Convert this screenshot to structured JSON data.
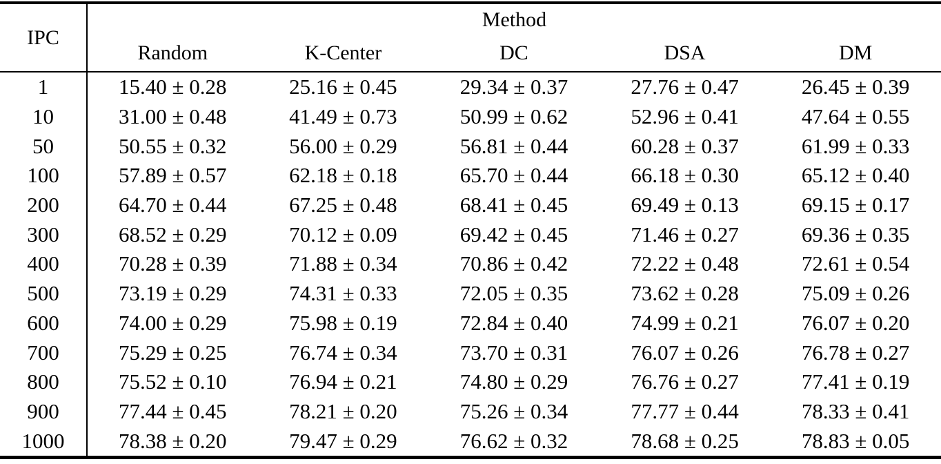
{
  "table": {
    "ipc_header": "IPC",
    "method_group_header": "Method",
    "columns": [
      "Random",
      "K-Center",
      "DC",
      "DSA",
      "DM"
    ],
    "rows": [
      {
        "ipc": "1",
        "values": [
          "15.40 ± 0.28",
          "25.16 ± 0.45",
          "29.34 ± 0.37",
          "27.76 ± 0.47",
          "26.45 ± 0.39"
        ]
      },
      {
        "ipc": "10",
        "values": [
          "31.00 ± 0.48",
          "41.49 ± 0.73",
          "50.99 ± 0.62",
          "52.96 ± 0.41",
          "47.64 ± 0.55"
        ]
      },
      {
        "ipc": "50",
        "values": [
          "50.55 ± 0.32",
          "56.00 ± 0.29",
          "56.81 ± 0.44",
          "60.28 ± 0.37",
          "61.99 ± 0.33"
        ]
      },
      {
        "ipc": "100",
        "values": [
          "57.89 ± 0.57",
          "62.18 ± 0.18",
          "65.70 ± 0.44",
          "66.18 ± 0.30",
          "65.12 ± 0.40"
        ]
      },
      {
        "ipc": "200",
        "values": [
          "64.70 ± 0.44",
          "67.25 ± 0.48",
          "68.41 ± 0.45",
          "69.49 ± 0.13",
          "69.15 ± 0.17"
        ]
      },
      {
        "ipc": "300",
        "values": [
          "68.52 ± 0.29",
          "70.12 ± 0.09",
          "69.42 ± 0.45",
          "71.46 ± 0.27",
          "69.36 ± 0.35"
        ]
      },
      {
        "ipc": "400",
        "values": [
          "70.28 ± 0.39",
          "71.88 ± 0.34",
          "70.86 ± 0.42",
          "72.22 ± 0.48",
          "72.61 ± 0.54"
        ]
      },
      {
        "ipc": "500",
        "values": [
          "73.19 ± 0.29",
          "74.31 ± 0.33",
          "72.05 ± 0.35",
          "73.62 ± 0.28",
          "75.09 ± 0.26"
        ]
      },
      {
        "ipc": "600",
        "values": [
          "74.00 ± 0.29",
          "75.98 ± 0.19",
          "72.84 ± 0.40",
          "74.99 ± 0.21",
          "76.07 ± 0.20"
        ]
      },
      {
        "ipc": "700",
        "values": [
          "75.29 ± 0.25",
          "76.74 ± 0.34",
          "73.70 ± 0.31",
          "76.07 ± 0.26",
          "76.78 ± 0.27"
        ]
      },
      {
        "ipc": "800",
        "values": [
          "75.52 ± 0.10",
          "76.94 ± 0.21",
          "74.80 ± 0.29",
          "76.76 ± 0.27",
          "77.41 ± 0.19"
        ]
      },
      {
        "ipc": "900",
        "values": [
          "77.44 ± 0.45",
          "78.21 ± 0.20",
          "75.26 ± 0.34",
          "77.77 ± 0.44",
          "78.33 ± 0.41"
        ]
      },
      {
        "ipc": "1000",
        "values": [
          "78.38 ± 0.20",
          "79.47 ± 0.29",
          "76.62 ± 0.32",
          "78.68 ± 0.25",
          "78.83 ± 0.05"
        ]
      }
    ]
  }
}
